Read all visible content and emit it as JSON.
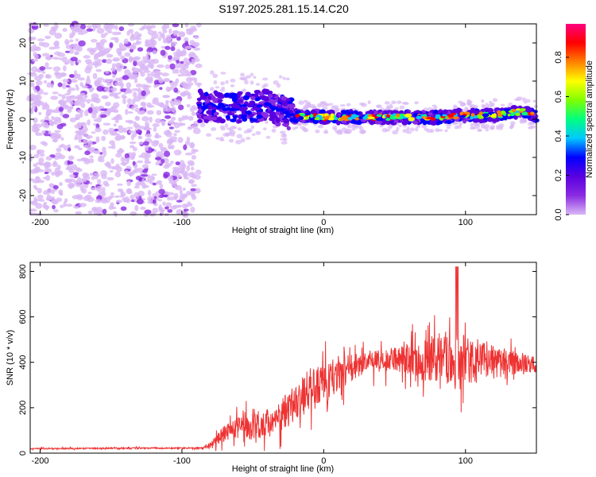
{
  "title": "S197.2025.281.15.14.C20",
  "chart_data": [
    {
      "type": "heatmap",
      "name": "spectrogram",
      "xlabel": "Height of straight line (km)",
      "ylabel": "Frequency (Hz)",
      "xlim": [
        -207,
        150
      ],
      "ylim": [
        -25,
        25
      ],
      "xticks": [
        -200,
        -100,
        0,
        100
      ],
      "xtick_labels": [
        "-200",
        "-100",
        "0",
        "100"
      ],
      "yticks": [
        -20,
        -10,
        0,
        10,
        20
      ],
      "ytick_labels": [
        "-20",
        "-10",
        "0",
        "10",
        "20"
      ],
      "colorbar": {
        "label": "Normalized spectral amplitude",
        "range": [
          0.0,
          0.97
        ],
        "ticks": [
          0.0,
          0.2,
          0.4,
          0.6,
          0.8
        ],
        "tick_labels": [
          "0.0",
          "0.2",
          "0.4",
          "0.6",
          "0.8"
        ],
        "colormap": [
          "#ffffff",
          "#d9b8f5",
          "#8a2be2",
          "#5a00e0",
          "#0000ff",
          "#00c8ff",
          "#00ff80",
          "#80ff00",
          "#ffff00",
          "#ff8000",
          "#ff0000",
          "#ff0080"
        ]
      },
      "regions": [
        {
          "x": [
            -207,
            -88
          ],
          "freq": [
            -25,
            25
          ],
          "amplitude": 0.15,
          "description_free": true
        },
        {
          "x": [
            -88,
            -20
          ],
          "freq": [
            -4,
            8
          ],
          "amplitude": 0.3
        },
        {
          "x": [
            -20,
            150
          ],
          "freq": [
            -1.5,
            3
          ],
          "amplitude": 0.6
        }
      ],
      "ridge": {
        "x": [
          -88,
          -60,
          -40,
          -20,
          0,
          40,
          80,
          100,
          120,
          140,
          150
        ],
        "freq": [
          3.5,
          3.0,
          3.5,
          1.0,
          0.5,
          0.5,
          0.5,
          1.0,
          1.0,
          2.0,
          1.0
        ]
      }
    },
    {
      "type": "line",
      "name": "snr",
      "xlabel": "Height of straight line (km)",
      "ylabel": "SNR (10 * v/v)",
      "xlim": [
        -207,
        150
      ],
      "ylim": [
        0,
        840
      ],
      "xticks": [
        -200,
        -100,
        0,
        100
      ],
      "xtick_labels": [
        "-200",
        "-100",
        "0",
        "100"
      ],
      "yticks": [
        0,
        200,
        400,
        600,
        800
      ],
      "ytick_labels": [
        "0",
        "200",
        "400",
        "600",
        "800"
      ],
      "series": [
        {
          "name": "SNR",
          "color": "#ee3333",
          "x": [
            -207,
            -180,
            -150,
            -120,
            -100,
            -85,
            -78,
            -70,
            -60,
            -50,
            -40,
            -30,
            -20,
            -10,
            0,
            10,
            20,
            30,
            40,
            50,
            60,
            70,
            80,
            90,
            100,
            110,
            120,
            130,
            140,
            150
          ],
          "values": [
            20,
            20,
            22,
            22,
            22,
            22,
            40,
            90,
            110,
            120,
            130,
            160,
            230,
            280,
            300,
            340,
            380,
            400,
            400,
            410,
            420,
            410,
            420,
            420,
            410,
            400,
            400,
            400,
            390,
            390
          ],
          "spread": [
            5,
            5,
            5,
            5,
            5,
            5,
            30,
            60,
            80,
            100,
            110,
            120,
            140,
            160,
            150,
            120,
            100,
            90,
            80,
            90,
            120,
            150,
            180,
            200,
            180,
            150,
            120,
            100,
            80,
            60
          ]
        }
      ]
    }
  ]
}
